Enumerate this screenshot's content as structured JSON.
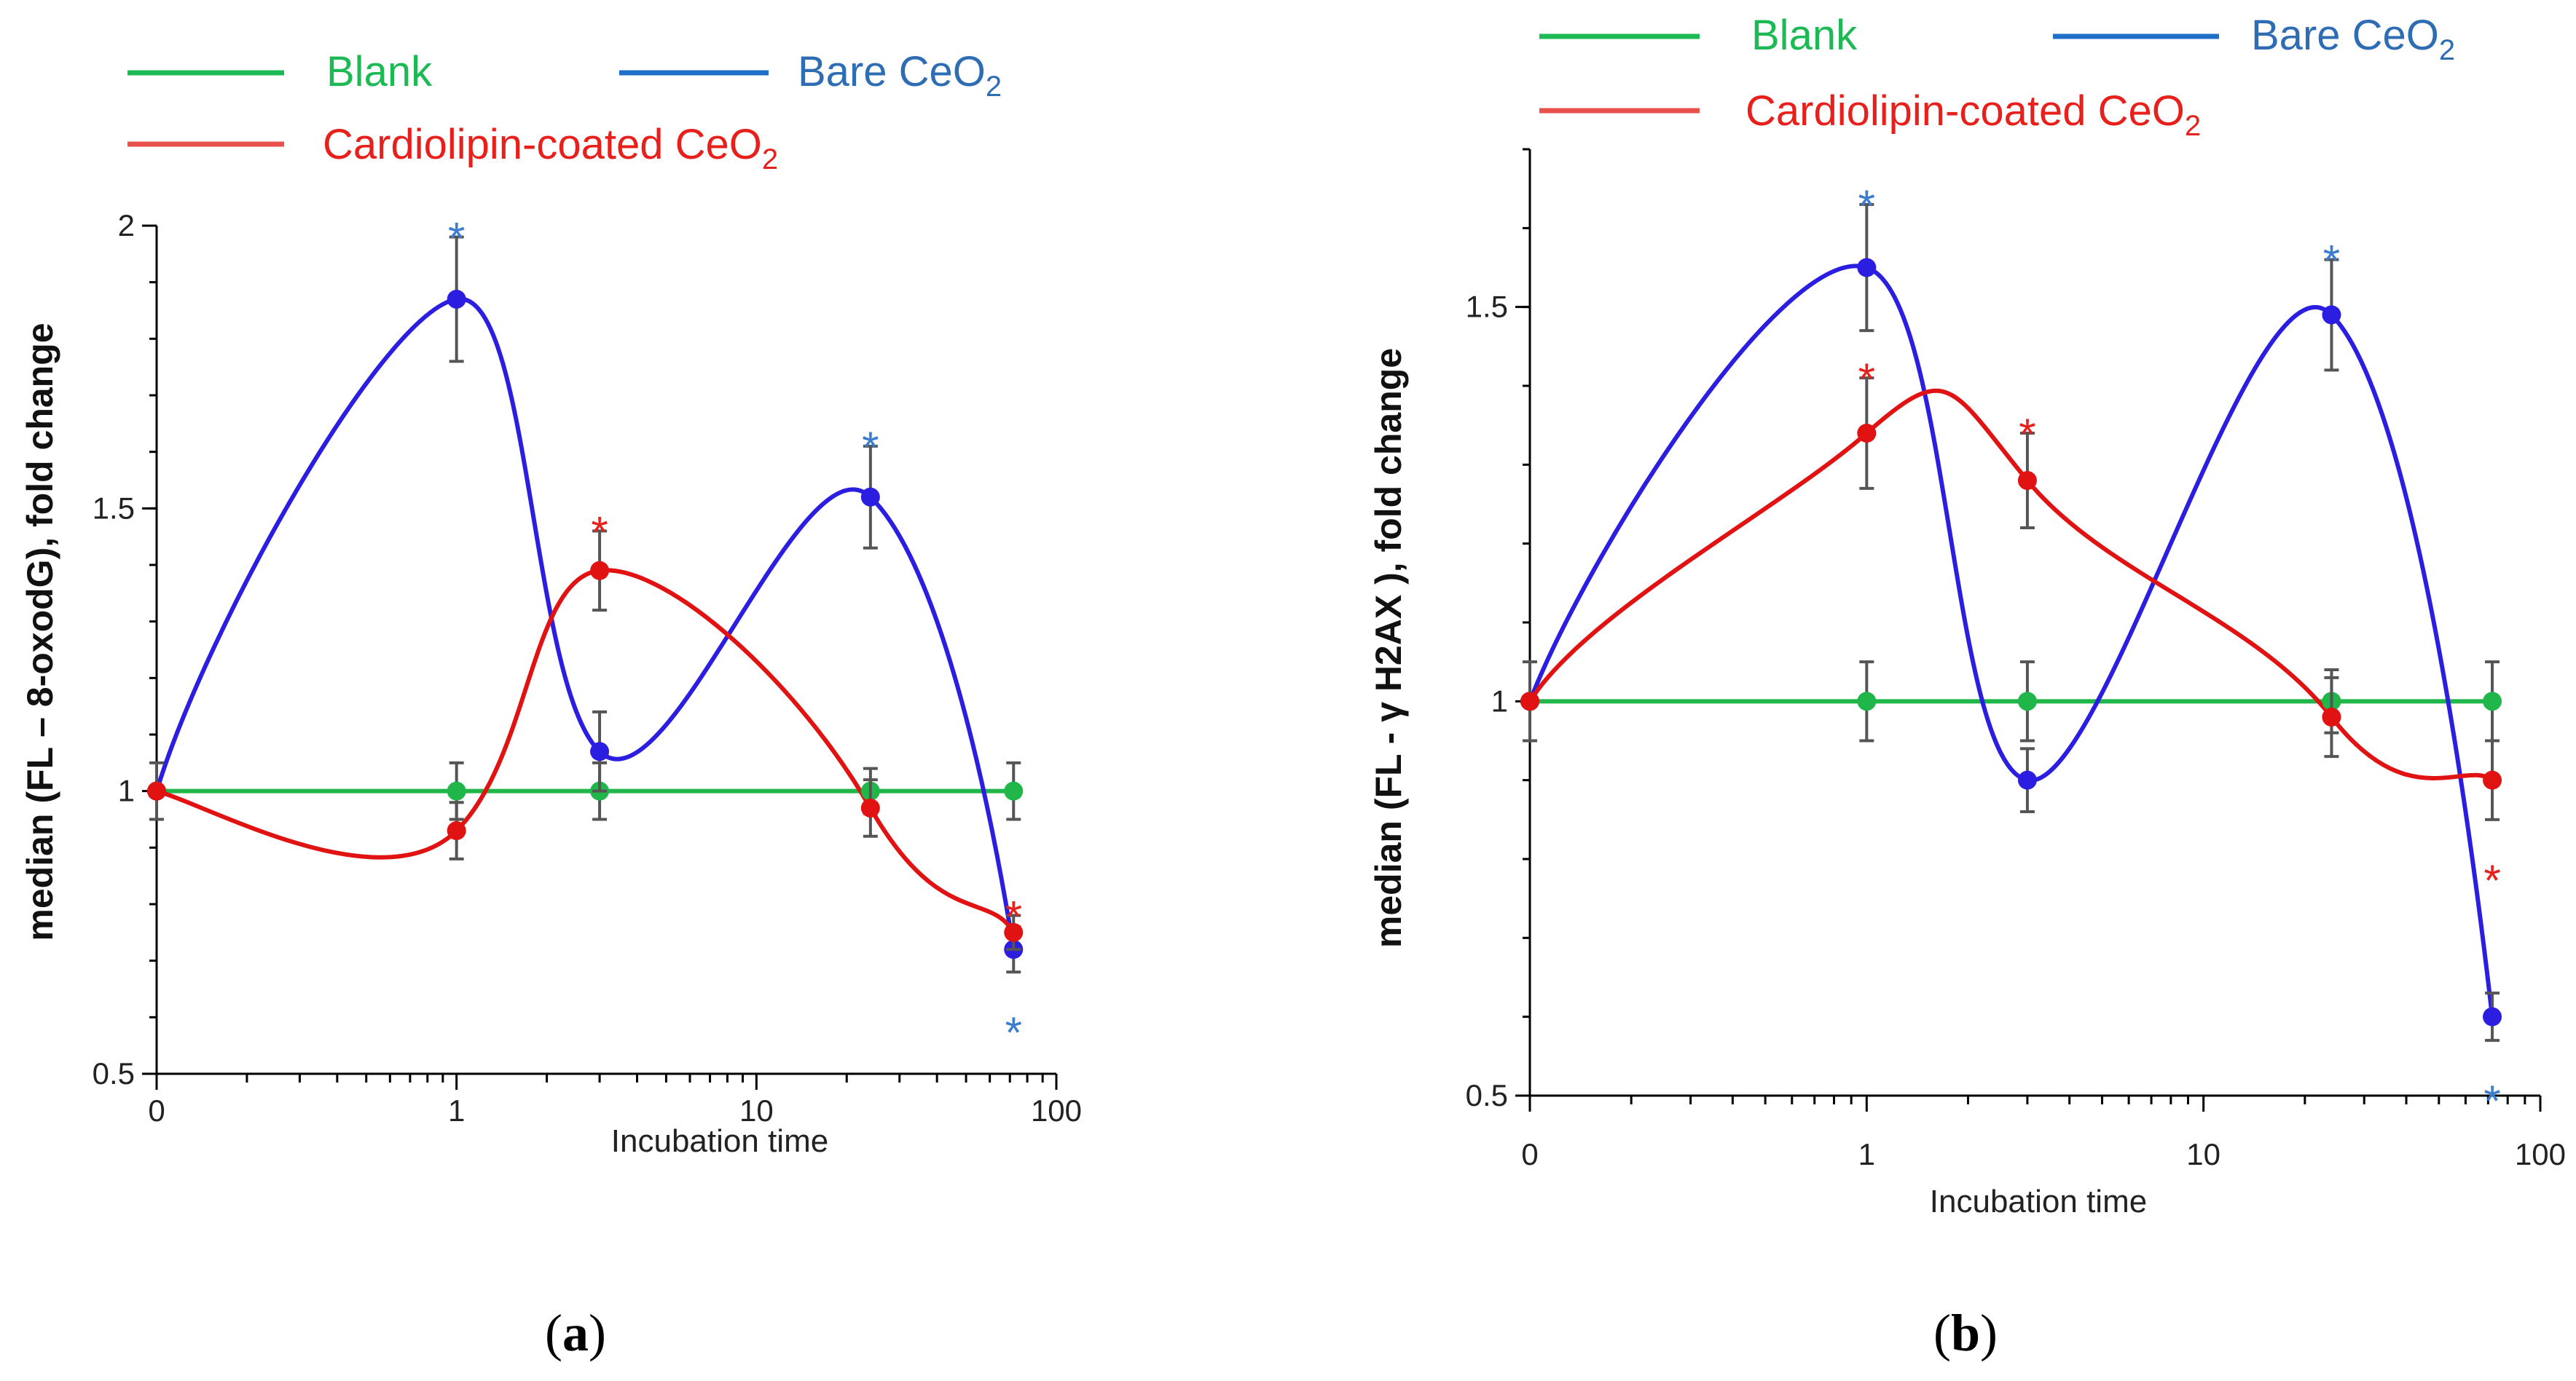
{
  "legend": {
    "blank": {
      "label": "Blank",
      "color": "#1db954"
    },
    "bare": {
      "label_main": "Bare CeO",
      "label_sub": "2",
      "color": "#2e6db4",
      "line_color": "#1f6fc8"
    },
    "cardio": {
      "label_main": "Cardiolipin-coated CeO",
      "label_sub": "2",
      "color": "#e8201c",
      "line_color": "#e8504c"
    }
  },
  "series_colors": {
    "blank": "#21b64a",
    "bare": "#2b1ee0",
    "cardio": "#e01212",
    "star_blue": "#3a7dd0",
    "star_red": "#e8201c"
  },
  "chart_data": [
    {
      "type": "line",
      "panel_label": "a",
      "caption_open": "(",
      "caption_close": ")",
      "title": "",
      "xlabel": "Incubation time",
      "ylabel": "median (FL – 8-oxodG), fold change",
      "xscale": "log",
      "x_tick_labels": [
        "0",
        "1",
        "10",
        "100"
      ],
      "y_tick_labels": [
        "0.5",
        "1",
        "1.5",
        "2"
      ],
      "ylim": [
        0.5,
        2.0
      ],
      "x": [
        0.1,
        1,
        3,
        24,
        72
      ],
      "series": [
        {
          "name": "Blank",
          "values": [
            1.0,
            1.0,
            1.0,
            1.0,
            1.0
          ],
          "errors": [
            0.05,
            0.05,
            0.05,
            0.04,
            0.05
          ],
          "stars": []
        },
        {
          "name": "Bare CeO2",
          "values": [
            1.0,
            1.87,
            1.07,
            1.52,
            0.72
          ],
          "errors": [
            0.0,
            0.11,
            0.07,
            0.09,
            0.04
          ],
          "stars": [
            1,
            3,
            4
          ]
        },
        {
          "name": "Cardiolipin-coated CeO2",
          "values": [
            1.0,
            0.93,
            1.39,
            0.97,
            0.75
          ],
          "errors": [
            0.0,
            0.05,
            0.07,
            0.05,
            0.03
          ],
          "stars": [
            2,
            4
          ]
        }
      ],
      "star_symbol": "*"
    },
    {
      "type": "line",
      "panel_label": "b",
      "caption_open": "(",
      "caption_close": ")",
      "title": "",
      "xlabel": "Incubation time",
      "ylabel": "median (FL - γ H2AX ), fold change",
      "xscale": "log",
      "x_tick_labels": [
        "0",
        "1",
        "10",
        "100"
      ],
      "y_tick_labels": [
        "0.5",
        "1",
        "1.5"
      ],
      "ylim": [
        0.5,
        1.7
      ],
      "x": [
        0.1,
        1,
        3,
        24,
        72
      ],
      "series": [
        {
          "name": "Blank",
          "values": [
            1.0,
            1.0,
            1.0,
            1.0,
            1.0
          ],
          "errors": [
            0.05,
            0.05,
            0.05,
            0.04,
            0.05
          ],
          "stars": []
        },
        {
          "name": "Bare CeO2",
          "values": [
            1.0,
            1.55,
            0.9,
            1.49,
            0.6
          ],
          "errors": [
            0.0,
            0.08,
            0.04,
            0.07,
            0.03
          ],
          "stars": [
            1,
            3,
            4
          ]
        },
        {
          "name": "Cardiolipin-coated CeO2",
          "values": [
            1.0,
            1.34,
            1.28,
            0.98,
            0.9
          ],
          "errors": [
            0.0,
            0.07,
            0.06,
            0.05,
            0.05
          ],
          "stars": [
            1,
            2,
            4
          ]
        }
      ],
      "star_symbol": "*"
    }
  ]
}
